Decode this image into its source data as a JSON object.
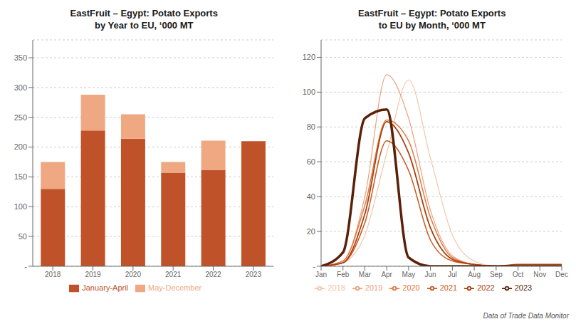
{
  "chart_data": [
    {
      "type": "bar",
      "stacked": true,
      "grid": true,
      "legend": "bottom",
      "title": "EastFruit – Egypt: Potato Exports\nby Year to EU, ‘000 MT",
      "categories": [
        "2018",
        "2019",
        "2020",
        "2021",
        "2022",
        "2023"
      ],
      "series": [
        {
          "name": "January-April",
          "color": "#C0522A",
          "values": [
            130,
            228,
            214,
            157,
            162,
            210
          ]
        },
        {
          "name": "May-December",
          "color": "#F0A882",
          "values": [
            45,
            60,
            41,
            18,
            49,
            0
          ]
        }
      ],
      "ylim": [
        0,
        380
      ],
      "yticks": [
        {
          "value": 0,
          "label": "-"
        },
        50,
        100,
        150,
        200,
        250,
        300,
        350
      ]
    },
    {
      "type": "line",
      "grid": true,
      "legend": "bottom",
      "title": "EastFruit – Egypt: Potato Exports\nto EU by Month, ‘000 MT",
      "annotation": "Data of Trade Data Monitor",
      "categories": [
        "Jan",
        "Feb",
        "Mar",
        "Apr",
        "May",
        "Jun",
        "Jul",
        "Aug",
        "Sep",
        "Oct",
        "Nov",
        "Dec"
      ],
      "series": [
        {
          "name": "2018",
          "color": "#F5C4A8",
          "values": [
            0,
            2,
            18,
            65,
            107,
            62,
            18,
            3,
            0,
            0,
            0,
            0
          ]
        },
        {
          "name": "2019",
          "color": "#EBA07A",
          "values": [
            0,
            3,
            40,
            110,
            85,
            32,
            6,
            1,
            0,
            0,
            0,
            0
          ]
        },
        {
          "name": "2020",
          "color": "#E07840",
          "values": [
            0,
            3,
            35,
            84,
            72,
            28,
            5,
            1,
            0,
            0,
            0,
            0
          ]
        },
        {
          "name": "2021",
          "color": "#C85A20",
          "values": [
            0,
            2,
            25,
            72,
            55,
            15,
            3,
            1,
            0,
            0,
            0,
            0
          ]
        },
        {
          "name": "2022",
          "color": "#A84010",
          "values": [
            0,
            2,
            30,
            83,
            65,
            22,
            4,
            1,
            0,
            1,
            1,
            1
          ]
        },
        {
          "name": "2023",
          "color": "#5C2008",
          "values": [
            0,
            8,
            85,
            90,
            5,
            0,
            0,
            0,
            0,
            0,
            0,
            0
          ]
        }
      ],
      "ylim": [
        0,
        130
      ],
      "yticks": [
        {
          "value": 0,
          "label": "-"
        },
        20,
        40,
        60,
        80,
        100,
        120
      ]
    }
  ]
}
